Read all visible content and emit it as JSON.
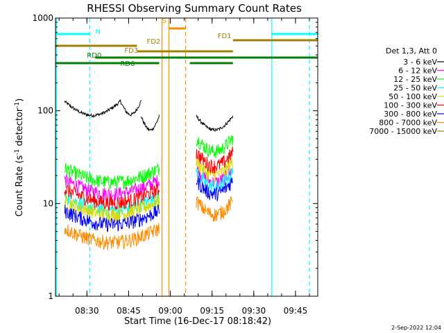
{
  "chart_data": {
    "type": "line",
    "title": "RHESSI Observing Summary Count Rates",
    "xlabel": "Start Time (16-Dec-17 08:18:42)",
    "ylabel_main": "Count Rate (s",
    "ylabel_sup1": "-1",
    "ylabel_mid": " detector",
    "ylabel_sup2": "-1",
    "ylabel_end": ")",
    "yscale": "log",
    "ylim": [
      1,
      1000
    ],
    "xlim": [
      "08:18:42",
      "09:53:00"
    ],
    "x_ticks": [
      "08:30",
      "08:45",
      "09:00",
      "09:15",
      "09:30",
      "09:45"
    ],
    "y_ticks": [
      "1",
      "10",
      "100",
      "1000"
    ],
    "timestamp": "2-Sep-2022 12:04",
    "legend_header": "Det 1,3, Att 0",
    "series": [
      {
        "name": "3 - 6 keV",
        "color": "#000000",
        "segments": [
          {
            "start": "08:22:00",
            "end": "08:42:00",
            "level": 105
          },
          {
            "start": "08:42:00",
            "end": "08:49:30",
            "level": 107
          },
          {
            "start": "08:49:30",
            "end": "08:56:00",
            "level": 73
          },
          {
            "start": "09:09:20",
            "end": "09:22:30",
            "level": 73
          }
        ]
      },
      {
        "name": "6 - 12 keV",
        "color": "#ff00ff",
        "segments": [
          {
            "start": "08:22:00",
            "end": "08:56:00",
            "level": 15
          },
          {
            "start": "09:09:20",
            "end": "09:22:30",
            "level": 20
          }
        ]
      },
      {
        "name": "12 - 25 keV",
        "color": "#00ff00",
        "segments": [
          {
            "start": "08:22:00",
            "end": "08:56:00",
            "level": 20
          },
          {
            "start": "09:09:20",
            "end": "09:22:30",
            "level": 43
          }
        ]
      },
      {
        "name": "25 - 50 keV",
        "color": "#00ffff",
        "segments": [
          {
            "start": "08:22:00",
            "end": "08:56:00",
            "level": 10
          },
          {
            "start": "09:09:20",
            "end": "09:22:30",
            "level": 18
          }
        ]
      },
      {
        "name": "50 - 100 keV",
        "color": "#d8d800",
        "segments": [
          {
            "start": "08:22:00",
            "end": "08:56:00",
            "level": 9
          },
          {
            "start": "09:09:20",
            "end": "09:22:30",
            "level": 24
          }
        ]
      },
      {
        "name": "100 - 300 keV",
        "color": "#ff0000",
        "segments": [
          {
            "start": "08:22:00",
            "end": "08:56:00",
            "level": 12
          },
          {
            "start": "09:09:20",
            "end": "09:22:30",
            "level": 30
          }
        ]
      },
      {
        "name": "300 - 800 keV",
        "color": "#0000ff",
        "segments": [
          {
            "start": "08:22:00",
            "end": "08:56:00",
            "level": 7
          },
          {
            "start": "09:09:20",
            "end": "09:22:30",
            "level": 15
          }
        ]
      },
      {
        "name": "800 - 7000 keV",
        "color": "#ff8c00",
        "segments": [
          {
            "start": "08:22:00",
            "end": "08:56:00",
            "level": 4.5
          },
          {
            "start": "09:09:20",
            "end": "09:22:30",
            "level": 9
          }
        ]
      },
      {
        "name": "7000 - 15000 keV",
        "color": "#a08000",
        "segments": []
      }
    ],
    "flag_bars": [
      {
        "label": "N",
        "color": "#00ffff",
        "segments": [
          [
            "08:18:42",
            "08:31:00"
          ],
          [
            "09:36:30",
            "09:53:00"
          ]
        ]
      },
      {
        "label": "S",
        "color": "#ff8c00",
        "segments": [
          [
            "08:59:30",
            "09:05:30"
          ]
        ]
      },
      {
        "label": "FD1",
        "color": "#a08000",
        "segments": [
          [
            "09:22:30",
            "09:53:00"
          ]
        ]
      },
      {
        "label": "FD2",
        "color": "#a08000",
        "segments": [
          [
            "08:18:42",
            "08:48:00"
          ]
        ]
      },
      {
        "label": "FD3",
        "color": "#a08000",
        "segments": [
          [
            "08:48:00",
            "09:22:30"
          ]
        ]
      },
      {
        "label": "RD0",
        "color": "#008000",
        "segments": [
          [
            "08:33:00",
            "09:53:00"
          ]
        ]
      },
      {
        "label": "RD6",
        "color": "#008000",
        "segments": [
          [
            "08:18:42",
            "08:56:00"
          ],
          [
            "09:07:00",
            "09:22:30"
          ]
        ]
      }
    ],
    "vertical_markers": [
      {
        "time": "08:19:00",
        "color": "#00ffff",
        "style": "solid"
      },
      {
        "time": "08:31:00",
        "color": "#00ffff",
        "style": "dashed"
      },
      {
        "time": "09:36:30",
        "color": "#00ffff",
        "style": "solid"
      },
      {
        "time": "09:50:00",
        "color": "#00ffff",
        "style": "dashed"
      },
      {
        "time": "08:57:00",
        "color": "#ff8c00",
        "style": "solid"
      },
      {
        "time": "08:59:30",
        "color": "#ff8c00",
        "style": "solid"
      },
      {
        "time": "09:05:30",
        "color": "#ff8c00",
        "style": "dashed"
      }
    ]
  }
}
